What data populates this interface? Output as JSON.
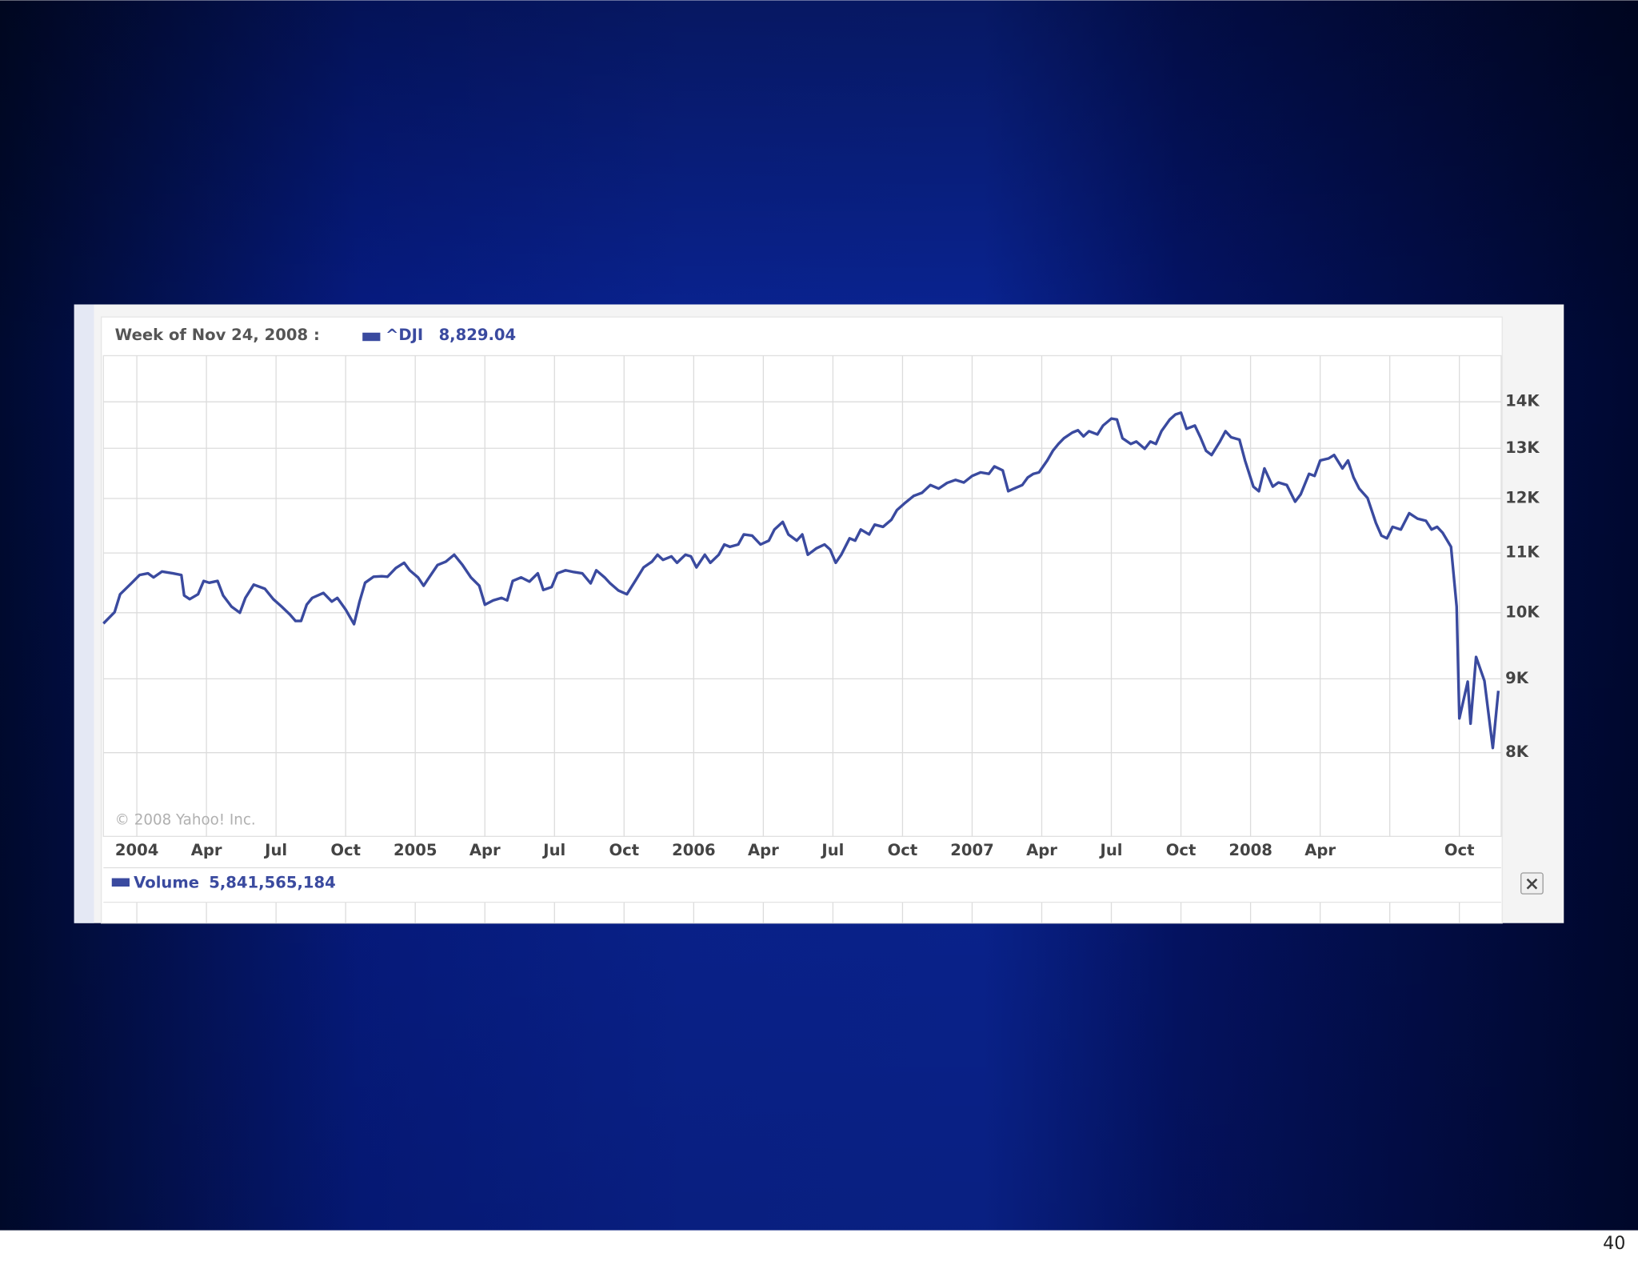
{
  "chart_data": {
    "type": "line",
    "readout_label": "Week of Nov 24, 2008 :",
    "readout_value": "8,829.04",
    "copyright": "© 2008 Yahoo! Inc.",
    "log_y": true,
    "grid": true,
    "xlim": [
      2003.88,
      2008.9
    ],
    "ylim": [
      7000,
      15070
    ],
    "yticks": [
      {
        "value": 8000,
        "label": "8K"
      },
      {
        "value": 9000,
        "label": "9K"
      },
      {
        "value": 10000,
        "label": "10K"
      },
      {
        "value": 11000,
        "label": "11K"
      },
      {
        "value": 12000,
        "label": "12K"
      },
      {
        "value": 13000,
        "label": "13K"
      },
      {
        "value": 14000,
        "label": "14K"
      }
    ],
    "xticks": [
      {
        "value": 2004,
        "label": "2004"
      },
      {
        "value": 2004.25,
        "label": "Apr"
      },
      {
        "value": 2004.5,
        "label": "Jul"
      },
      {
        "value": 2004.75,
        "label": "Oct"
      },
      {
        "value": 2005,
        "label": "2005"
      },
      {
        "value": 2005.25,
        "label": "Apr"
      },
      {
        "value": 2005.5,
        "label": "Jul"
      },
      {
        "value": 2005.75,
        "label": "Oct"
      },
      {
        "value": 2006,
        "label": "2006"
      },
      {
        "value": 2006.25,
        "label": "Apr"
      },
      {
        "value": 2006.5,
        "label": "Jul"
      },
      {
        "value": 2006.75,
        "label": "Oct"
      },
      {
        "value": 2007,
        "label": "2007"
      },
      {
        "value": 2007.25,
        "label": "Apr"
      },
      {
        "value": 2007.5,
        "label": "Jul"
      },
      {
        "value": 2007.75,
        "label": "Oct"
      },
      {
        "value": 2008,
        "label": "2008"
      },
      {
        "value": 2008.25,
        "label": "Apr"
      },
      {
        "value": 2008.5,
        "label": null
      },
      {
        "value": 2008.75,
        "label": "Oct"
      }
    ],
    "series": [
      {
        "name": "^DJI",
        "color": "#3a4a9f",
        "x": [
          2003.88,
          2003.92,
          2003.94,
          2003.98,
          2004.01,
          2004.04,
          2004.06,
          2004.09,
          2004.13,
          2004.16,
          2004.17,
          2004.19,
          2004.22,
          2004.24,
          2004.26,
          2004.29,
          2004.31,
          2004.34,
          2004.37,
          2004.39,
          2004.42,
          2004.46,
          2004.49,
          2004.52,
          2004.55,
          2004.57,
          2004.59,
          2004.61,
          2004.63,
          2004.67,
          2004.7,
          2004.72,
          2004.75,
          2004.78,
          2004.8,
          2004.82,
          2004.85,
          2004.88,
          2004.9,
          2004.93,
          2004.96,
          2004.98,
          2005.01,
          2005.03,
          2005.05,
          2005.08,
          2005.11,
          2005.14,
          2005.17,
          2005.2,
          2005.23,
          2005.25,
          2005.28,
          2005.31,
          2005.33,
          2005.35,
          2005.38,
          2005.41,
          2005.44,
          2005.46,
          2005.49,
          2005.51,
          2005.54,
          2005.57,
          2005.6,
          2005.63,
          2005.65,
          2005.68,
          2005.7,
          2005.73,
          2005.76,
          2005.79,
          2005.82,
          2005.85,
          2005.87,
          2005.89,
          2005.92,
          2005.94,
          2005.97,
          2005.99,
          2006.01,
          2006.04,
          2006.06,
          2006.09,
          2006.11,
          2006.13,
          2006.16,
          2006.18,
          2006.21,
          2006.24,
          2006.27,
          2006.29,
          2006.32,
          2006.34,
          2006.37,
          2006.39,
          2006.41,
          2006.44,
          2006.47,
          2006.49,
          2006.51,
          2006.53,
          2006.56,
          2006.58,
          2006.6,
          2006.63,
          2006.65,
          2006.68,
          2006.71,
          2006.73,
          2006.76,
          2006.79,
          2006.82,
          2006.85,
          2006.88,
          2006.91,
          2006.94,
          2006.97,
          2007.0,
          2007.03,
          2007.06,
          2007.08,
          2007.11,
          2007.13,
          2007.15,
          2007.18,
          2007.2,
          2007.22,
          2007.24,
          2007.27,
          2007.29,
          2007.31,
          2007.33,
          2007.36,
          2007.38,
          2007.4,
          2007.42,
          2007.45,
          2007.47,
          2007.5,
          2007.52,
          2007.54,
          2007.57,
          2007.59,
          2007.62,
          2007.64,
          2007.66,
          2007.68,
          2007.71,
          2007.73,
          2007.75,
          2007.77,
          2007.8,
          2007.82,
          2007.84,
          2007.86,
          2007.89,
          2007.91,
          2007.93,
          2007.96,
          2007.98,
          2008.01,
          2008.03,
          2008.05,
          2008.08,
          2008.1,
          2008.13,
          2008.16,
          2008.18,
          2008.21,
          2008.23,
          2008.25,
          2008.28,
          2008.3,
          2008.33,
          2008.35,
          2008.37,
          2008.39,
          2008.42,
          2008.45,
          2008.47,
          2008.49,
          2008.51,
          2008.54,
          2008.57,
          2008.6,
          2008.63,
          2008.65,
          2008.67,
          2008.69,
          2008.72,
          2008.74,
          2008.75,
          2008.78,
          2008.79,
          2008.81,
          2008.84,
          2008.87,
          2008.89
        ],
        "values": [
          9830,
          10010,
          10300,
          10480,
          10620,
          10650,
          10580,
          10680,
          10650,
          10620,
          10280,
          10220,
          10300,
          10520,
          10490,
          10520,
          10280,
          10100,
          10000,
          10240,
          10460,
          10390,
          10220,
          10100,
          9970,
          9870,
          9870,
          10130,
          10240,
          10320,
          10180,
          10240,
          10050,
          9820,
          10180,
          10490,
          10590,
          10600,
          10590,
          10740,
          10830,
          10700,
          10580,
          10440,
          10580,
          10790,
          10850,
          10970,
          10790,
          10580,
          10440,
          10130,
          10200,
          10240,
          10200,
          10520,
          10580,
          10510,
          10650,
          10370,
          10420,
          10650,
          10700,
          10670,
          10650,
          10480,
          10700,
          10580,
          10480,
          10360,
          10300,
          10520,
          10750,
          10850,
          10970,
          10880,
          10940,
          10830,
          10970,
          10940,
          10750,
          10970,
          10830,
          10970,
          11150,
          11110,
          11150,
          11330,
          11310,
          11150,
          11220,
          11420,
          11560,
          11330,
          11220,
          11330,
          10970,
          11080,
          11150,
          11060,
          10830,
          10970,
          11260,
          11220,
          11420,
          11330,
          11510,
          11470,
          11600,
          11780,
          11920,
          12050,
          12110,
          12260,
          12190,
          12300,
          12360,
          12310,
          12440,
          12510,
          12480,
          12630,
          12550,
          12140,
          12190,
          12260,
          12410,
          12480,
          12510,
          12750,
          12950,
          13090,
          13210,
          13330,
          13380,
          13250,
          13360,
          13290,
          13480,
          13630,
          13610,
          13210,
          13090,
          13140,
          12990,
          13140,
          13090,
          13360,
          13610,
          13720,
          13760,
          13410,
          13480,
          13230,
          12950,
          12860,
          13140,
          13360,
          13230,
          13180,
          12750,
          12230,
          12140,
          12590,
          12230,
          12310,
          12260,
          11940,
          12080,
          12480,
          12440,
          12750,
          12790,
          12860,
          12590,
          12750,
          12410,
          12190,
          12010,
          11540,
          11310,
          11260,
          11470,
          11420,
          11720,
          11620,
          11580,
          11420,
          11470,
          11360,
          11110,
          10100,
          8450,
          8960,
          8380,
          9320,
          8970,
          8060,
          8829.04
        ]
      }
    ],
    "volume": {
      "name": "Volume",
      "value": "5,841,565,184"
    }
  },
  "slide_number": "40"
}
